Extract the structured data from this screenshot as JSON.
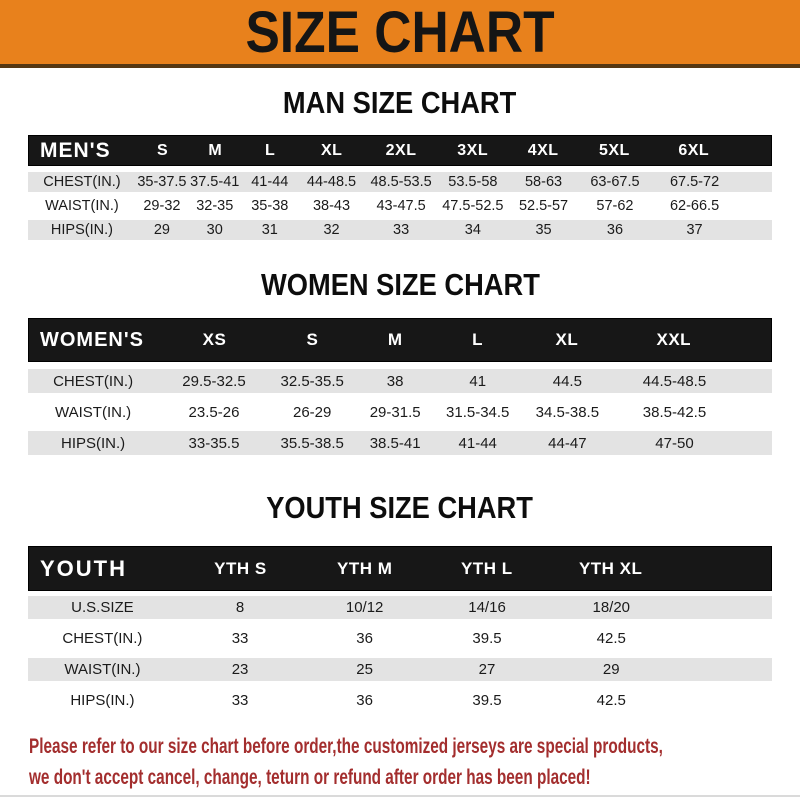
{
  "banner": {
    "title": "SIZE CHART"
  },
  "colors": {
    "banner_bg": "#E8811C",
    "header_bar": "#171717",
    "row_stripe": "#E3E3E3",
    "footer_text": "#A32E2E"
  },
  "sections": {
    "men": {
      "heading": "MAN SIZE CHART",
      "header": [
        "MEN'S",
        "S",
        "M",
        "L",
        "XL",
        "2XL",
        "3XL",
        "4XL",
        "5XL",
        "6XL"
      ],
      "rows": [
        {
          "label": "CHEST(IN.)",
          "values": [
            "35-37.5",
            "37.5-41",
            "41-44",
            "44-48.5",
            "48.5-53.5",
            "53.5-58",
            "58-63",
            "63-67.5",
            "67.5-72"
          ]
        },
        {
          "label": "WAIST(IN.)",
          "values": [
            "29-32",
            "32-35",
            "35-38",
            "38-43",
            "43-47.5",
            "47.5-52.5",
            "52.5-57",
            "57-62",
            "62-66.5"
          ]
        },
        {
          "label": "HIPS(IN.)",
          "values": [
            "29",
            "30",
            "31",
            "32",
            "33",
            "34",
            "35",
            "36",
            "37"
          ]
        }
      ]
    },
    "women": {
      "heading": "WOMEN SIZE CHART",
      "header": [
        "WOMEN'S",
        "XS",
        "S",
        "M",
        "L",
        "XL",
        "XXL"
      ],
      "rows": [
        {
          "label": "CHEST(IN.)",
          "values": [
            "29.5-32.5",
            "32.5-35.5",
            "38",
            "41",
            "44.5",
            "44.5-48.5"
          ]
        },
        {
          "label": "WAIST(IN.)",
          "values": [
            "23.5-26",
            "26-29",
            "29-31.5",
            "31.5-34.5",
            "34.5-38.5",
            "38.5-42.5"
          ]
        },
        {
          "label": "HIPS(IN.)",
          "values": [
            "33-35.5",
            "35.5-38.5",
            "38.5-41",
            "41-44",
            "44-47",
            "47-50"
          ]
        }
      ]
    },
    "youth": {
      "heading": "YOUTH SIZE CHART",
      "header": [
        "YOUTH",
        "YTH S",
        "YTH M",
        "YTH L",
        "YTH XL"
      ],
      "rows": [
        {
          "label": "U.S.SIZE",
          "values": [
            "8",
            "10/12",
            "14/16",
            "18/20"
          ]
        },
        {
          "label": "CHEST(IN.)",
          "values": [
            "33",
            "36",
            "39.5",
            "42.5"
          ]
        },
        {
          "label": "WAIST(IN.)",
          "values": [
            "23",
            "25",
            "27",
            "29"
          ]
        },
        {
          "label": "HIPS(IN.)",
          "values": [
            "33",
            "36",
            "39.5",
            "42.5"
          ]
        }
      ]
    }
  },
  "footer": {
    "lines": [
      "Please refer to our size chart before order,the customized jerseys are special products,",
      "we don't accept cancel, change, teturn or refund after order has been placed!"
    ]
  }
}
